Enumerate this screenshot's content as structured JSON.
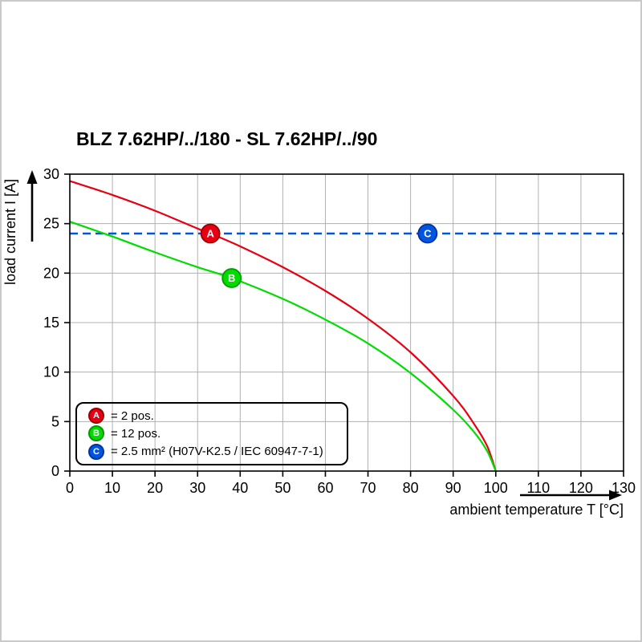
{
  "chart_data": {
    "type": "line",
    "title": "BLZ 7.62HP/../180 - SL 7.62HP/../90",
    "xlabel": "ambient temperature T [°C]",
    "ylabel": "load current I [A]",
    "xlim": [
      0,
      130
    ],
    "ylim": [
      0,
      30
    ],
    "xticks": [
      0,
      10,
      20,
      30,
      40,
      50,
      60,
      70,
      80,
      90,
      100,
      110,
      120,
      130
    ],
    "yticks": [
      0,
      5,
      10,
      15,
      20,
      25,
      30
    ],
    "grid": true,
    "grid_color": "#b0b0b0",
    "series": [
      {
        "name": "A",
        "label": "= 2 pos.",
        "color": "#e60012",
        "dark": "#990000",
        "style": "solid",
        "points": [
          [
            0,
            29.3
          ],
          [
            10,
            27.9
          ],
          [
            20,
            26.3
          ],
          [
            30,
            24.5
          ],
          [
            33,
            24.0
          ],
          [
            40,
            22.7
          ],
          [
            50,
            20.6
          ],
          [
            60,
            18.2
          ],
          [
            70,
            15.4
          ],
          [
            80,
            12.0
          ],
          [
            90,
            7.6
          ],
          [
            95,
            4.7
          ],
          [
            98,
            2.5
          ],
          [
            100,
            0
          ]
        ],
        "marker": {
          "x": 33,
          "y": 24
        }
      },
      {
        "name": "B",
        "label": "= 12 pos.",
        "color": "#00dc00",
        "dark": "#009900",
        "style": "solid",
        "points": [
          [
            0,
            25.2
          ],
          [
            10,
            23.7
          ],
          [
            20,
            22.1
          ],
          [
            30,
            20.6
          ],
          [
            38,
            19.5
          ],
          [
            50,
            17.4
          ],
          [
            60,
            15.3
          ],
          [
            70,
            12.9
          ],
          [
            80,
            9.9
          ],
          [
            90,
            6.2
          ],
          [
            95,
            3.9
          ],
          [
            98,
            2.0
          ],
          [
            100,
            0
          ]
        ],
        "marker": {
          "x": 38,
          "y": 19.5
        }
      },
      {
        "name": "C",
        "label": "= 2.5 mm² (H07V-K2.5 / IEC 60947-7-1)",
        "color": "#0055e0",
        "dark": "#0033a0",
        "style": "dashed",
        "points": [
          [
            0,
            24
          ],
          [
            130,
            24
          ]
        ],
        "marker": {
          "x": 84,
          "y": 24
        }
      }
    ]
  }
}
